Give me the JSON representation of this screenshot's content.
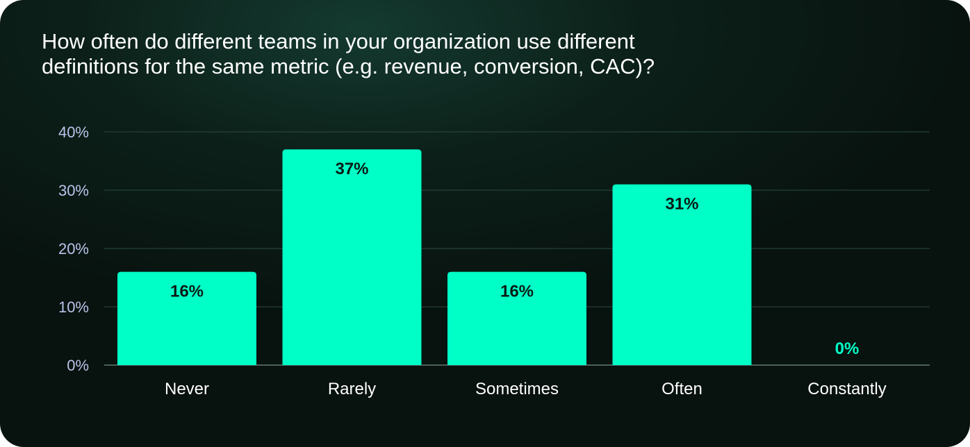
{
  "title_lines": [
    "How often do different teams in your organization use different",
    "definitions for the same metric (e.g. revenue, conversion, CAC)?"
  ],
  "colors": {
    "bar": "#00ffc6",
    "label_on_bar": "#0a1a15",
    "label_above": "#00ffc6",
    "grid": "#2c4a42",
    "tick": "#b9c4ea"
  },
  "chart_data": {
    "type": "bar",
    "title": "How often do different teams in your organization use different definitions for the same metric (e.g. revenue, conversion, CAC)?",
    "categories": [
      "Never",
      "Rarely",
      "Sometimes",
      "Often",
      "Constantly"
    ],
    "values": [
      16,
      37,
      16,
      31,
      0
    ],
    "data_labels": [
      "16%",
      "37%",
      "16%",
      "31%",
      "0%"
    ],
    "yticks": [
      0,
      10,
      20,
      30,
      40
    ],
    "ytick_labels": [
      "0%",
      "10%",
      "20%",
      "30%",
      "40%"
    ],
    "ylim": [
      0,
      40
    ],
    "xlabel": "",
    "ylabel": "",
    "grid": true,
    "legend": "none"
  }
}
